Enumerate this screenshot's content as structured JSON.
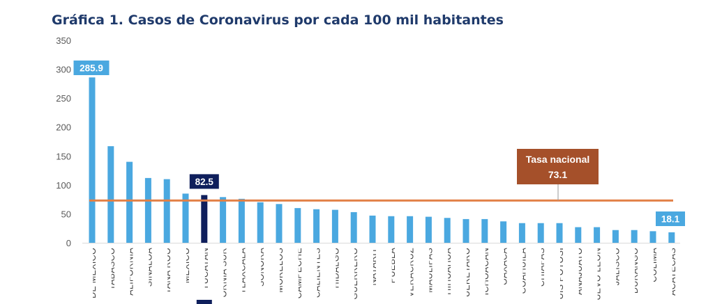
{
  "chart_data": {
    "type": "bar",
    "title": "Gráfica 1. Casos de Coronavirus por cada 100 mil habitantes",
    "xlabel": "",
    "ylabel": "",
    "ylim": [
      0,
      350
    ],
    "yticks": [
      0,
      50,
      100,
      150,
      200,
      250,
      300,
      350
    ],
    "grid": false,
    "categories": [
      "DE MÉXICO",
      "TABASCO",
      "ALIFORNIA",
      "SINALOA",
      "TANA ROO",
      "MÉXICO",
      "YUCATÁN",
      "ORNIA SUR",
      "TLAXCALA",
      "SONORA",
      "MORELOS",
      "CAMPECHE",
      "CALIENTES",
      "HIDALGO",
      "GUERRERO",
      "NAYARIT",
      "PUEBLA",
      "VERACRUZ",
      "MAULIPAS",
      "HIHUAHUA",
      "UERÉTARO",
      "ICHOACÁN",
      "OAXACA",
      "COAHUILA",
      "CHIAPAS",
      "UIS POTOSÍ",
      "ANAJUATO",
      "UEVO LEÓN",
      "JALISCO",
      "DURANGO",
      "COLIMA",
      "ACATECAS"
    ],
    "values": [
      285.9,
      167,
      140,
      112,
      110,
      85,
      82.5,
      79,
      76,
      70,
      67,
      60,
      58,
      57,
      53,
      47,
      46,
      46,
      45,
      43,
      41,
      41,
      37,
      34,
      34,
      34,
      27,
      27,
      22,
      22,
      20,
      18.1
    ],
    "highlight_category": "YUCATÁN",
    "data_labels": [
      {
        "category": "DE MÉXICO",
        "text": "285.9"
      },
      {
        "category": "YUCATÁN",
        "text": "82.5"
      },
      {
        "category": "ACATECAS",
        "text": "18.1"
      }
    ],
    "reference_line": {
      "value": 73.1,
      "label": "Tasa nacional",
      "value_text": "73.1"
    },
    "colors": {
      "bar": "#4aa8e0",
      "highlight": "#0f1f5c",
      "reference_line": "#e27f45",
      "reference_box": "#a5502a",
      "title": "#1f3a6b",
      "axis_text": "#595959"
    }
  }
}
